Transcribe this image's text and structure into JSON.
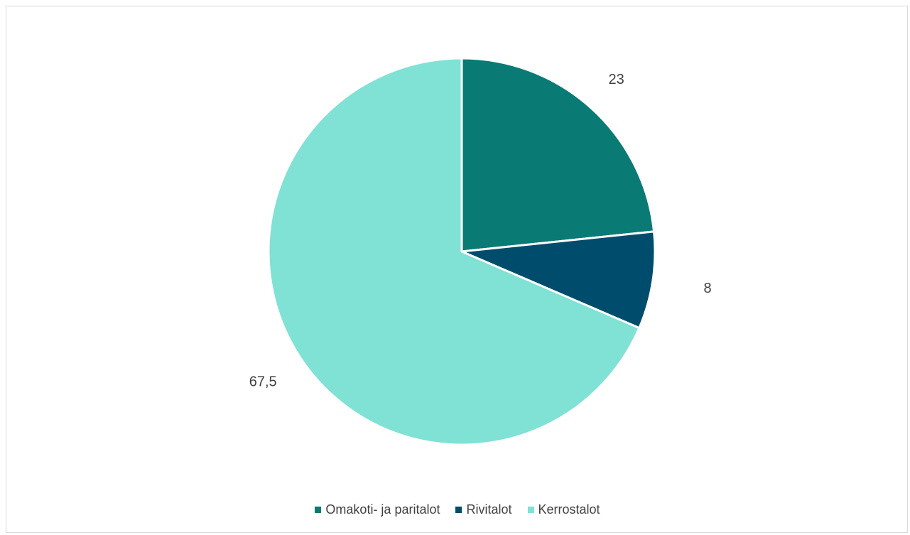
{
  "chart_data": {
    "type": "pie",
    "categories": [
      "Omakoti- ja paritalot",
      "Rivitalot",
      "Kerrostalot"
    ],
    "values": [
      23,
      8,
      67.5
    ],
    "value_labels": [
      "23",
      "8",
      "67,5"
    ],
    "colors": [
      "#0a7a74",
      "#004c6c",
      "#80e1d5"
    ],
    "legend_position": "bottom",
    "start_angle": "12 o'clock, clockwise"
  }
}
